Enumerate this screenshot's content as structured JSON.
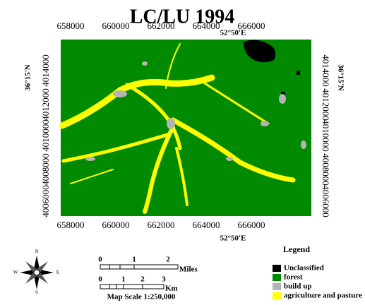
{
  "title": "LC/LU 1994",
  "map": {
    "top_labels": [
      "658000",
      "660000",
      "662000",
      "664000",
      "666000"
    ],
    "bottom_labels": [
      "658000",
      "660000",
      "662000",
      "664000",
      "666000"
    ],
    "left_labels": [
      "4014000",
      "4012000",
      "4010000",
      "4008000",
      "4006000"
    ],
    "right_labels": [
      "4014000",
      "4012000",
      "4010000",
      "4008000",
      "4006000"
    ],
    "top_meridian": "52°50'E",
    "bottom_meridian": "52°50'E",
    "left_parallel": "36°15'N",
    "right_parallel": "36°15'N"
  },
  "legend": {
    "title": "Legend",
    "items": [
      {
        "label": "Unclassified",
        "color": "#000000"
      },
      {
        "label": "forest",
        "color": "#008a00"
      },
      {
        "label": "build up",
        "color": "#b4b4b4"
      },
      {
        "label": "agriculture and pasture",
        "color": "#ffff00"
      }
    ]
  },
  "scale": {
    "miles": [
      "0",
      "1",
      "2"
    ],
    "miles_unit": "Miles",
    "km": [
      "0",
      "1",
      "2",
      "3"
    ],
    "km_unit": "Km",
    "text": "Map Scale 1:250,000"
  },
  "compass": [
    "N",
    "E",
    "S",
    "W"
  ]
}
